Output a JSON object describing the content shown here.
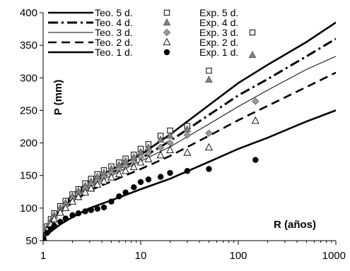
{
  "chart_data": {
    "type": "scatter",
    "xlabel": "R (años)",
    "ylabel": "P (mm)",
    "xscale": "log",
    "xlim": [
      1,
      1000
    ],
    "ylim": [
      50,
      400
    ],
    "xticks": [
      1,
      10,
      100,
      1000
    ],
    "xtick_labels": [
      "1",
      "10",
      "100",
      "1000"
    ],
    "yticks": [
      50,
      100,
      150,
      200,
      250,
      300,
      350,
      400
    ],
    "ytick_labels": [
      "50",
      "100",
      "150",
      "200",
      "250",
      "300",
      "350",
      "400"
    ],
    "grid": false,
    "legend_position": "top-left",
    "series": [
      {
        "name": "Teo. 5 d.",
        "kind": "line",
        "style": "solid-thick",
        "x": [
          1,
          1.5,
          2,
          3,
          5,
          10,
          20,
          50,
          100,
          200,
          500,
          1000
        ],
        "y": [
          55,
          101,
          120,
          141,
          159,
          182,
          213,
          258,
          292,
          320,
          355,
          385
        ]
      },
      {
        "name": "Teo. 4 d.",
        "kind": "line",
        "style": "dash-dot",
        "x": [
          1,
          1.5,
          2,
          3,
          5,
          10,
          20,
          50,
          100,
          200,
          500,
          1000
        ],
        "y": [
          55,
          99,
          117,
          137,
          154,
          176,
          203,
          243,
          273,
          298,
          333,
          360
        ]
      },
      {
        "name": "Teo. 3 d.",
        "kind": "line",
        "style": "thin",
        "x": [
          1,
          1.5,
          2,
          3,
          5,
          10,
          20,
          50,
          100,
          200,
          500,
          1000
        ],
        "y": [
          55,
          97,
          114,
          133,
          150,
          172,
          194,
          229,
          256,
          281,
          313,
          333
        ]
      },
      {
        "name": "Teo. 2 d.",
        "kind": "line",
        "style": "dashed",
        "x": [
          1,
          1.5,
          2,
          3,
          5,
          10,
          20,
          50,
          100,
          200,
          500,
          1000
        ],
        "y": [
          55,
          93,
          109,
          127,
          141,
          160,
          180,
          211,
          235,
          257,
          286,
          308
        ]
      },
      {
        "name": "Teo. 1 d.",
        "kind": "line",
        "style": "solid-thick",
        "x": [
          1,
          1.5,
          2,
          3,
          5,
          10,
          20,
          50,
          100,
          200,
          500,
          1000
        ],
        "y": [
          55,
          75,
          86,
          100,
          112,
          129,
          145,
          171,
          191,
          208,
          233,
          250
        ]
      },
      {
        "name": "Exp. 5 d.",
        "kind": "points",
        "marker": "square",
        "x": [
          1,
          1.1,
          1.2,
          1.3,
          1.5,
          1.7,
          2,
          2.3,
          2.7,
          3.1,
          3.6,
          4.2,
          5,
          6,
          7,
          8.5,
          10,
          12,
          16,
          20,
          30,
          50
        ],
        "y": [
          57,
          72,
          83,
          92,
          103,
          111,
          121,
          129,
          138,
          145,
          152,
          158,
          164,
          170,
          176,
          182,
          191,
          198,
          211,
          219,
          226,
          311
        ]
      },
      {
        "name": "Exp. 4 d.",
        "kind": "points",
        "marker": "triangle-filled",
        "x": [
          1,
          1.1,
          1.2,
          1.3,
          1.5,
          1.7,
          2,
          2.3,
          2.7,
          3.1,
          3.6,
          4.2,
          5,
          6,
          7,
          8.5,
          10,
          12,
          16,
          20,
          30,
          50
        ],
        "y": [
          56,
          70,
          80,
          89,
          100,
          108,
          118,
          126,
          134,
          141,
          148,
          154,
          160,
          166,
          172,
          178,
          186,
          193,
          205,
          211,
          221,
          297
        ]
      },
      {
        "name": "Exp. 3 d.",
        "kind": "points",
        "marker": "diamond",
        "x": [
          1,
          1.1,
          1.2,
          1.3,
          1.5,
          1.7,
          2,
          2.3,
          2.7,
          3.1,
          3.6,
          4.2,
          5,
          6,
          7,
          8.5,
          10,
          12,
          16,
          20,
          30,
          50,
          150
        ],
        "y": [
          56,
          68,
          78,
          86,
          96,
          104,
          114,
          121,
          129,
          135,
          141,
          147,
          153,
          159,
          164,
          170,
          178,
          184,
          193,
          200,
          212,
          215,
          264
        ]
      },
      {
        "name": "Exp. 2 d.",
        "kind": "points",
        "marker": "triangle-open",
        "x": [
          1,
          1.1,
          1.2,
          1.3,
          1.5,
          1.7,
          2,
          2.3,
          2.7,
          3.1,
          3.6,
          4.2,
          5,
          6,
          7,
          8.5,
          10,
          12,
          16,
          20,
          30,
          50,
          150
        ],
        "y": [
          55,
          66,
          75,
          83,
          93,
          100,
          110,
          117,
          124,
          130,
          136,
          141,
          147,
          152,
          157,
          163,
          170,
          175,
          181,
          189,
          185,
          193,
          234
        ]
      },
      {
        "name": "Exp. 1 d.",
        "kind": "points",
        "marker": "circle-filled",
        "x": [
          1,
          1.1,
          1.2,
          1.3,
          1.5,
          1.7,
          2,
          2.3,
          2.7,
          3.1,
          3.6,
          4.2,
          5,
          6,
          7,
          8.5,
          10,
          12,
          16,
          20,
          30,
          50,
          150
        ],
        "y": [
          54,
          62,
          68,
          73,
          79,
          84,
          89,
          92,
          95,
          97,
          99,
          101,
          110,
          118,
          124,
          132,
          140,
          144,
          148,
          154,
          157,
          160,
          174
        ]
      }
    ],
    "legend_extra_markers": [
      {
        "series": "Exp. 3 d.",
        "marker": "square"
      },
      {
        "series": "Exp. 1 d.",
        "marker": "triangle-filled"
      }
    ]
  }
}
